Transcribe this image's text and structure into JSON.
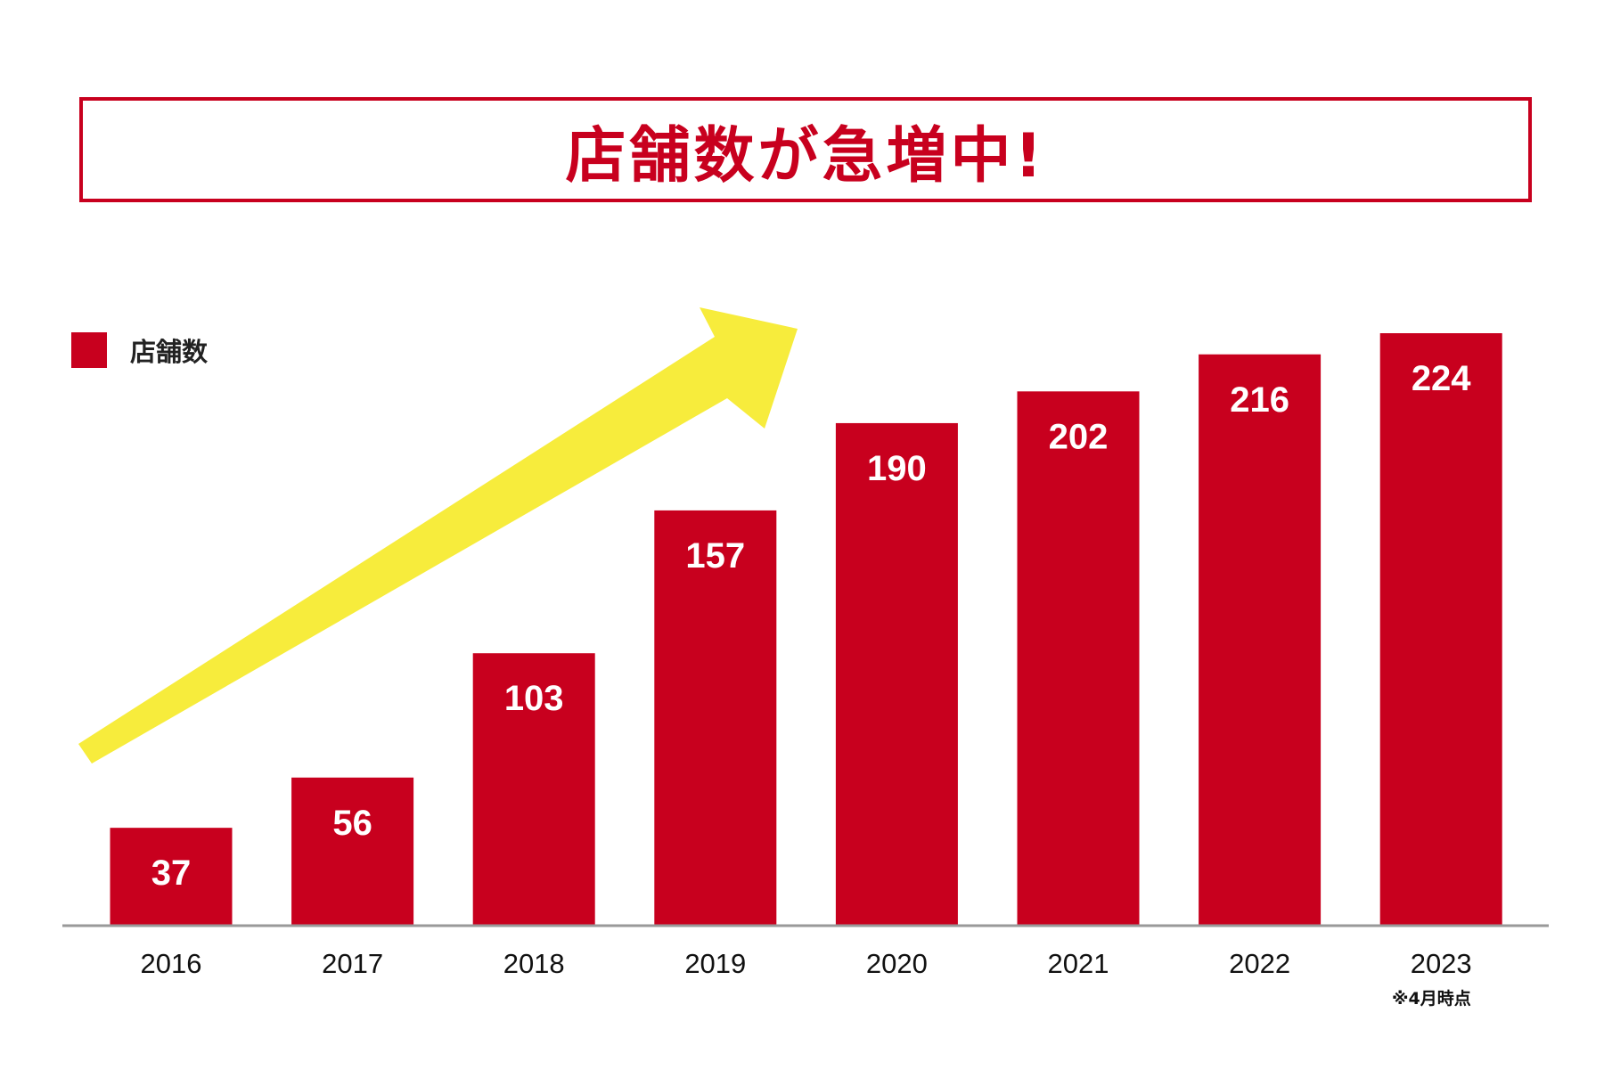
{
  "header": {
    "title": "店舗数が急増中!"
  },
  "legend": {
    "label": "店舗数"
  },
  "note": "※4月時点",
  "colors": {
    "bar": "#c8001e",
    "arrow": "#f7ec3c",
    "axis": "#999999",
    "title": "#c8001e"
  },
  "chart_data": {
    "type": "bar",
    "title": "店舗数が急増中!",
    "xlabel": "",
    "ylabel": "",
    "categories": [
      "2016",
      "2017",
      "2018",
      "2019",
      "2020",
      "2021",
      "2022",
      "2023"
    ],
    "series": [
      {
        "name": "店舗数",
        "values": [
          37,
          56,
          103,
          157,
          190,
          202,
          216,
          224
        ]
      }
    ],
    "data_labels": [
      "37",
      "56",
      "103",
      "157",
      "190",
      "202",
      "216",
      "224"
    ],
    "grid": false,
    "legend_position": "top-left",
    "annotation": "※4月時点"
  }
}
